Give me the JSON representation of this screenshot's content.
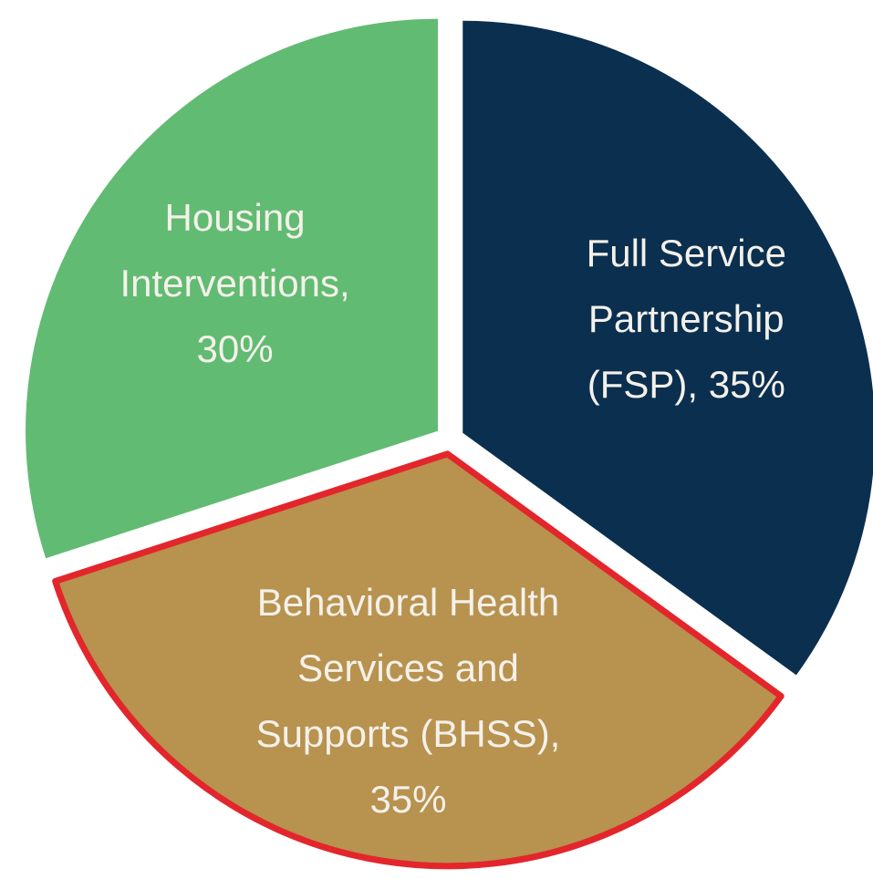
{
  "chart_data": {
    "type": "pie",
    "categories": [
      "Full Service Partnership (FSP), 35%",
      "Behavioral Health Services and Supports (BHSS), 35%",
      "Housing Interventions, 30%"
    ],
    "values": [
      35,
      35,
      30
    ],
    "colors": [
      "#0b2f4f",
      "#b8924f",
      "#62bb72"
    ],
    "highlight": 1,
    "highlight_color": "#e3262b"
  }
}
